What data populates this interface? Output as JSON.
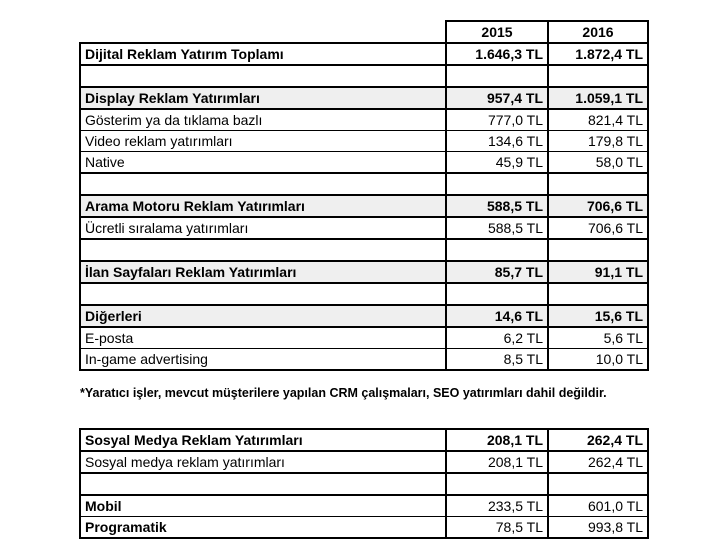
{
  "header": {
    "col1": "2015",
    "col2": "2016"
  },
  "total": {
    "label": "Dijital Reklam Yatırım Toplamı",
    "v2015": "1.646,3 TL",
    "v2016": "1.872,4 TL"
  },
  "display": {
    "label": "Display Reklam Yatırımları",
    "v2015": "957,4 TL",
    "v2016": "1.059,1 TL",
    "rows": [
      {
        "label": "Gösterim ya da tıklama bazlı",
        "v2015": "777,0 TL",
        "v2016": "821,4 TL"
      },
      {
        "label": "Video reklam yatırımları",
        "v2015": "134,6 TL",
        "v2016": "179,8 TL"
      },
      {
        "label": "Native",
        "v2015": "45,9 TL",
        "v2016": "58,0 TL"
      }
    ]
  },
  "search": {
    "label": "Arama Motoru Reklam Yatırımları",
    "v2015": "588,5 TL",
    "v2016": "706,6 TL",
    "rows": [
      {
        "label": "Ücretli sıralama yatırımları",
        "v2015": "588,5 TL",
        "v2016": "706,6 TL"
      }
    ]
  },
  "classifieds": {
    "label": "İlan Sayfaları Reklam Yatırımları",
    "v2015": "85,7 TL",
    "v2016": "91,1 TL"
  },
  "others": {
    "label": "Diğerleri",
    "v2015": "14,6 TL",
    "v2016": "15,6 TL",
    "rows": [
      {
        "label": "E-posta",
        "v2015": "6,2 TL",
        "v2016": "5,6 TL"
      },
      {
        "label": "In-game advertising",
        "v2015": "8,5 TL",
        "v2016": "10,0 TL"
      }
    ]
  },
  "note": "*Yaratıcı işler, mevcut müşterilere yapılan CRM çalışmaları, SEO yatırımları dahil değildir.",
  "social": {
    "label": "Sosyal Medya Reklam Yatırımları",
    "v2015": "208,1 TL",
    "v2016": "262,4 TL",
    "rows": [
      {
        "label": "Sosyal medya reklam yatırımları",
        "v2015": "208,1 TL",
        "v2016": "262,4 TL"
      }
    ]
  },
  "mobile": {
    "label": "Mobil",
    "v2015": "233,5 TL",
    "v2016": "601,0 TL"
  },
  "programmatic": {
    "label": "Programatik",
    "v2015": "78,5 TL",
    "v2016": "993,8 TL"
  }
}
